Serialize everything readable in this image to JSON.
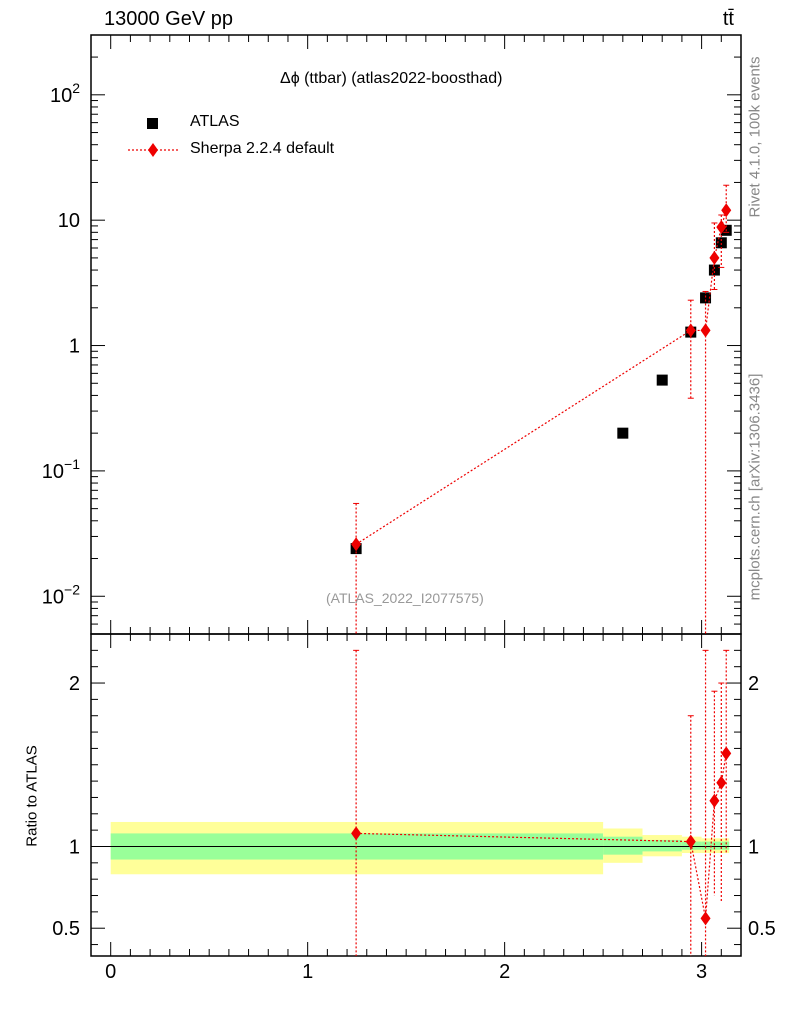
{
  "header": {
    "energy_label": "13000 GeV pp",
    "process_label": "tt̄"
  },
  "side_labels": {
    "rivet": "Rivet 4.1.0,  100k events",
    "mcplots": "mcplots.cern.ch [arXiv:1306.3436]"
  },
  "chart_data": [
    {
      "type": "scatter",
      "title": "Δϕ (ttbar) (atlas2022-boosthad)",
      "watermark": "(ATLAS_2022_I2077575)",
      "xlabel": "",
      "ylabel": "",
      "xlim": [
        -0.1,
        3.2
      ],
      "ylim": [
        0.005,
        300
      ],
      "yscale": "log",
      "yticks": [
        {
          "value": 0.01,
          "label": "10",
          "sup": "−2"
        },
        {
          "value": 0.1,
          "label": "10",
          "sup": "−1"
        },
        {
          "value": 1,
          "label": "1",
          "sup": ""
        },
        {
          "value": 10,
          "label": "10",
          "sup": ""
        },
        {
          "value": 100,
          "label": "10",
          "sup": "2"
        }
      ],
      "legend_position": "top-left",
      "series": [
        {
          "name": "ATLAS",
          "marker": "square",
          "color": "#000000",
          "x": [
            1.246,
            2.6,
            2.8,
            2.945,
            3.02,
            3.065,
            3.1,
            3.125
          ],
          "y": [
            0.024,
            0.2,
            0.53,
            1.28,
            2.4,
            4.0,
            6.6,
            8.3
          ]
        },
        {
          "name": "Sherpa 2.2.4 default",
          "marker": "diamond",
          "color": "#ee0000",
          "line": "dotted",
          "x": [
            1.246,
            2.945,
            3.02,
            3.065,
            3.1,
            3.125
          ],
          "y": [
            0.026,
            1.32,
            1.32,
            5.0,
            8.8,
            12.0
          ],
          "y_low": [
            0.004,
            0.38,
            0.004,
            2.8,
            4.2,
            8.0
          ],
          "y_high": [
            0.055,
            2.3,
            2.7,
            9.5,
            11.0,
            19.0
          ]
        }
      ]
    },
    {
      "type": "scatter",
      "ylabel": "Ratio to ATLAS",
      "xlim": [
        -0.1,
        3.2
      ],
      "ylim": [
        0.33,
        2.3
      ],
      "xticks": [
        0,
        1,
        2,
        3
      ],
      "yticks": [
        0.5,
        1,
        2
      ],
      "reference_line": 1.0,
      "bands": {
        "edges": [
          0,
          2.5,
          2.7,
          2.9,
          3.0,
          3.05,
          3.1,
          3.14
        ],
        "outer_low": [
          0.83,
          0.9,
          0.94,
          0.96,
          0.96,
          0.96,
          0.96
        ],
        "outer_high": [
          1.15,
          1.11,
          1.07,
          1.06,
          1.05,
          1.05,
          1.05
        ],
        "inner_low": [
          0.92,
          0.95,
          0.97,
          0.98,
          0.98,
          0.98,
          0.98
        ],
        "inner_high": [
          1.08,
          1.06,
          1.04,
          1.03,
          1.03,
          1.03,
          1.03
        ],
        "outer_color": "#ffff99",
        "inner_color": "#99ff99"
      },
      "series": [
        {
          "name": "Sherpa 2.2.4 default",
          "marker": "diamond",
          "color": "#ee0000",
          "line": "dotted",
          "x": [
            1.246,
            2.945,
            3.02,
            3.065,
            3.1,
            3.125
          ],
          "y": [
            1.08,
            1.03,
            0.56,
            1.28,
            1.39,
            1.57
          ],
          "y_low": [
            0.3,
            0.3,
            0.3,
            0.7,
            0.66,
            0.96
          ],
          "y_high": [
            2.2,
            1.8,
            2.2,
            1.95,
            2.0,
            2.2
          ]
        }
      ]
    }
  ]
}
